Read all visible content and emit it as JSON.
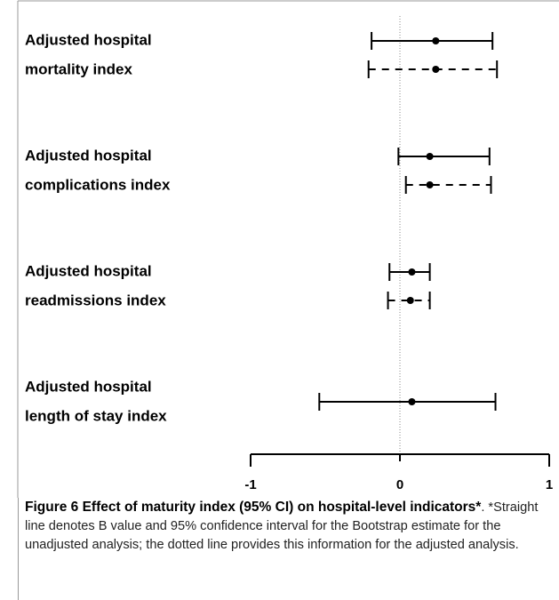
{
  "chart_data": {
    "type": "forest",
    "categories": [
      [
        "Adjusted hospital",
        "mortality index"
      ],
      [
        "Adjusted hospital",
        "complications index"
      ],
      [
        "Adjusted hospital",
        "readmissions index"
      ],
      [
        "Adjusted hospital",
        "length of stay index"
      ]
    ],
    "series": [
      {
        "style": "solid",
        "color": "#000000",
        "values": [
          0.24,
          0.2,
          0.08,
          0.08
        ],
        "lower": [
          -0.19,
          -0.01,
          -0.07,
          -0.54
        ],
        "upper": [
          0.62,
          0.6,
          0.2,
          0.64
        ]
      },
      {
        "style": "dashed",
        "color": "#000000",
        "values": [
          0.24,
          0.2,
          0.07,
          null
        ],
        "lower": [
          -0.21,
          0.04,
          -0.08,
          null
        ],
        "upper": [
          0.65,
          0.61,
          0.2,
          null
        ]
      }
    ],
    "xlim": [
      -1,
      1
    ],
    "xticks": [
      -1,
      0,
      1
    ],
    "reference_line": 0
  },
  "caption": {
    "title": "Figure 6 Effect of maturity index (95% CI) on hospital-level indicators*",
    "text": ". *Straight line denotes B value and 95% confidence interval for the Bootstrap estimate for the unadjusted analysis; the dotted line provides this information for the adjusted analysis."
  }
}
